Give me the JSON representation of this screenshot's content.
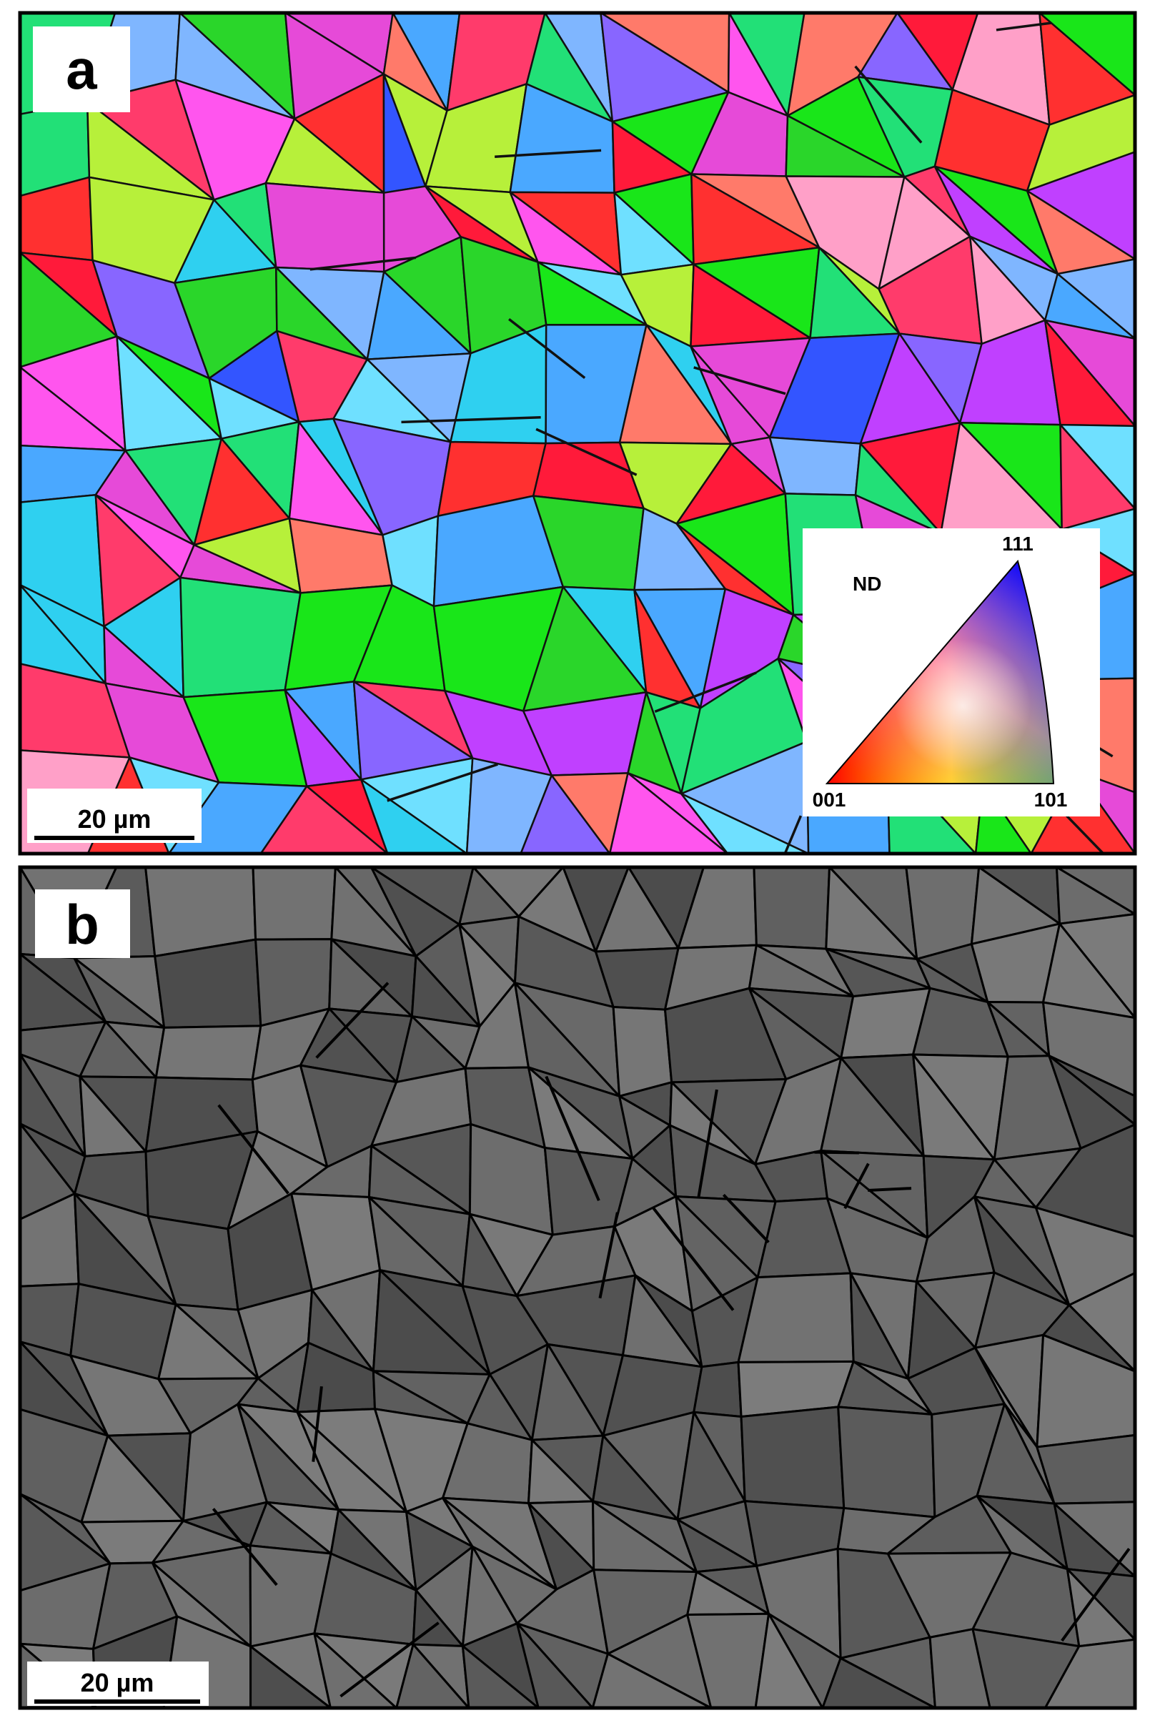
{
  "panels": [
    {
      "label": "a",
      "scale_bar": "20 µm",
      "legend": {
        "title": "ND",
        "corners": [
          "111",
          "001",
          "101"
        ]
      }
    },
    {
      "label": "b",
      "scale_bar": "20 µm"
    }
  ]
}
